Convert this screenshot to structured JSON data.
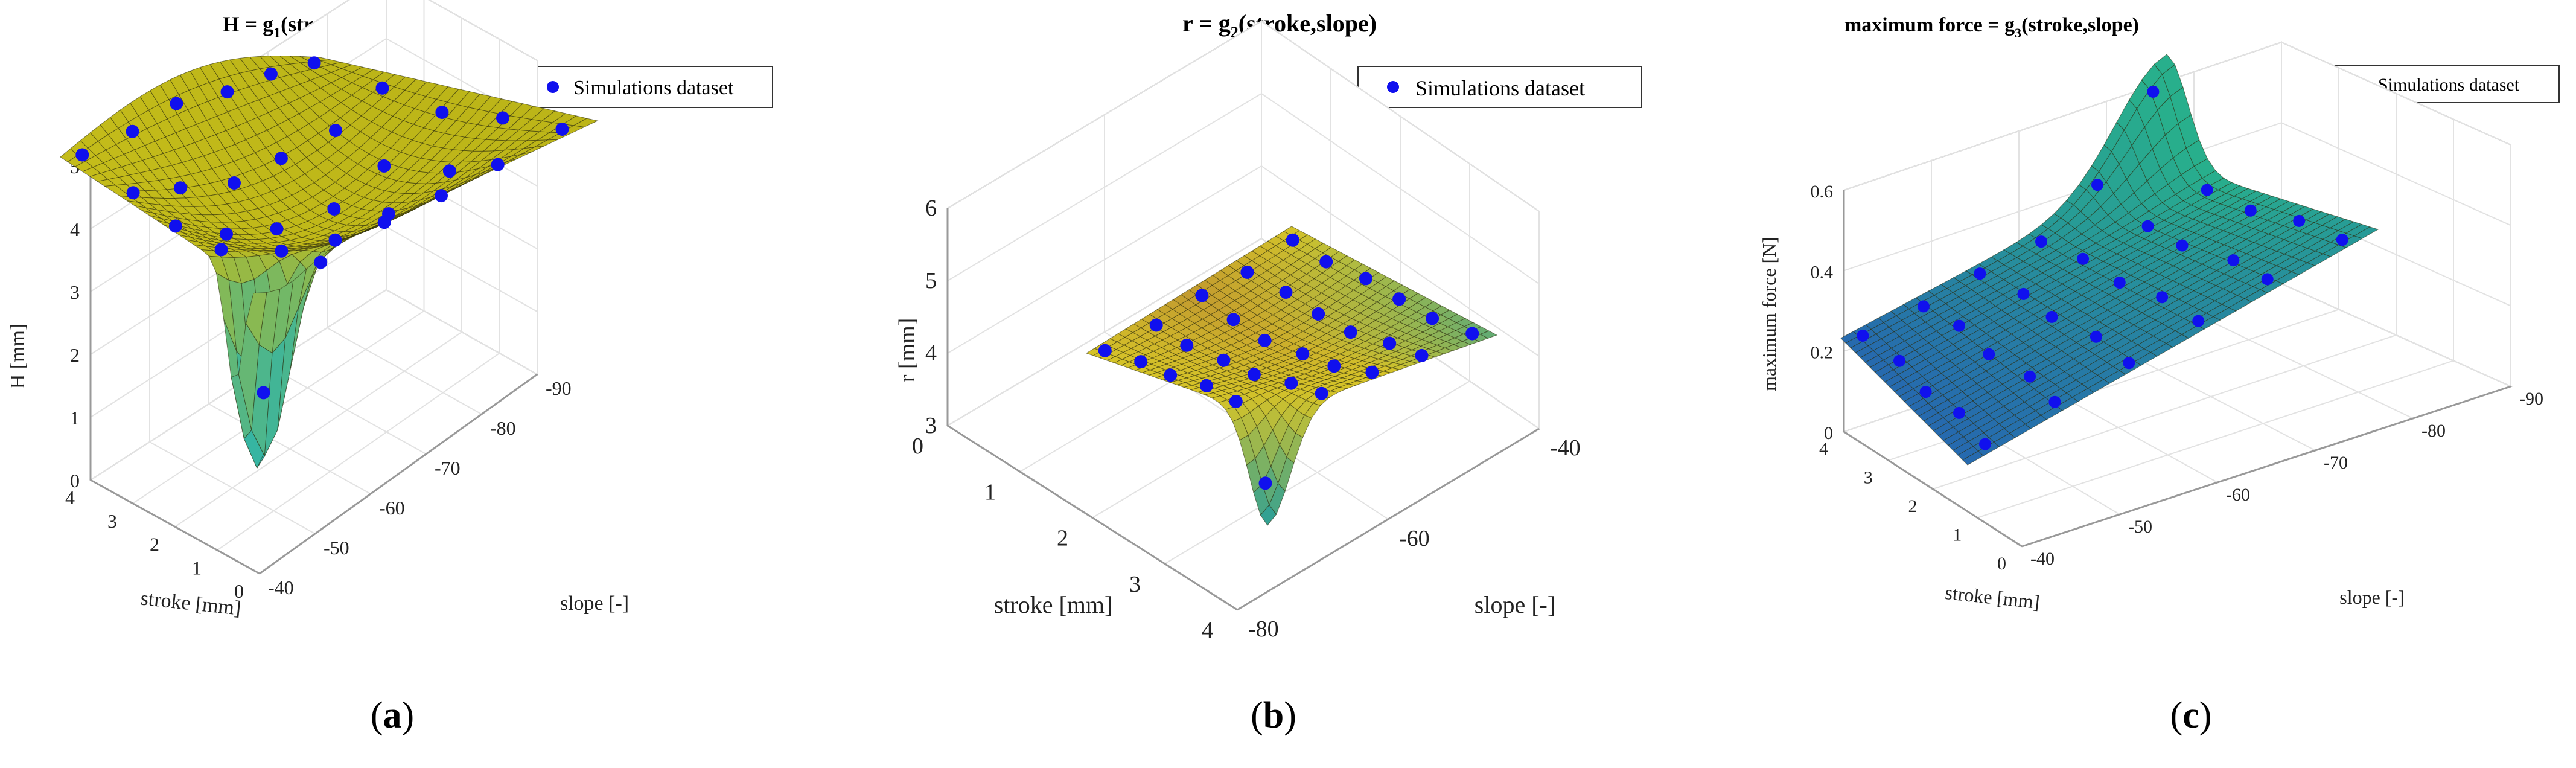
{
  "chart_data": [
    {
      "type": "surface",
      "title": "H = g",
      "title_sub": "1",
      "title_tail": "(stroke,slope)",
      "legend": "Simulations dataset",
      "zlabel": "H [mm]",
      "xlabel": "stroke [mm]",
      "ylabel": "slope [-]",
      "xlim": [
        0,
        4
      ],
      "ylim": [
        -90,
        -40
      ],
      "zlim": [
        0,
        5
      ],
      "xticks": [
        "4",
        "3",
        "2",
        "1",
        "0"
      ],
      "yticks": [
        "-40",
        "-50",
        "-60",
        "-70",
        "-80",
        "-90"
      ],
      "zticks": [
        "0",
        "1",
        "2",
        "3",
        "4",
        "5"
      ],
      "colormap": "yellow-green",
      "caption": "a"
    },
    {
      "type": "surface",
      "title": "r = g",
      "title_sub": "2",
      "title_tail": "(stroke,slope)",
      "legend": "Simulations dataset",
      "zlabel": "r [mm]",
      "xlabel": "stroke [mm]",
      "ylabel": "slope [-]",
      "xlim": [
        0,
        4
      ],
      "ylim": [
        -90,
        -40
      ],
      "zlim": [
        3,
        6
      ],
      "xticks": [
        "0",
        "1",
        "2",
        "3",
        "4"
      ],
      "yticks": [
        "-80",
        "-60",
        "-40"
      ],
      "zticks": [
        "3",
        "4",
        "5",
        "6"
      ],
      "colormap": "yellow-green",
      "caption": "b"
    },
    {
      "type": "surface",
      "title": "maximum force = g",
      "title_sub": "3",
      "title_tail": "(stroke,slope)",
      "legend": "Simulations dataset",
      "zlabel": "maximum force [N]",
      "xlabel": "stroke [mm]",
      "ylabel": "slope [-]",
      "xlim": [
        0,
        4
      ],
      "ylim": [
        -90,
        -40
      ],
      "zlim": [
        0,
        0.6
      ],
      "xticks": [
        "4",
        "3",
        "2",
        "1",
        "0"
      ],
      "yticks": [
        "-40",
        "-50",
        "-60",
        "-70",
        "-80",
        "-90"
      ],
      "zticks": [
        "0",
        "0.2",
        "0.4",
        "0.6"
      ],
      "colormap": "blue-green",
      "caption": "c"
    }
  ],
  "colors": {
    "axis": "#999999",
    "grid": "#e2e2e2",
    "point": "#1010ee",
    "surface_a": "#c2bc18",
    "surface_b": "#c6b224",
    "surface_c": "#2a8dad"
  }
}
